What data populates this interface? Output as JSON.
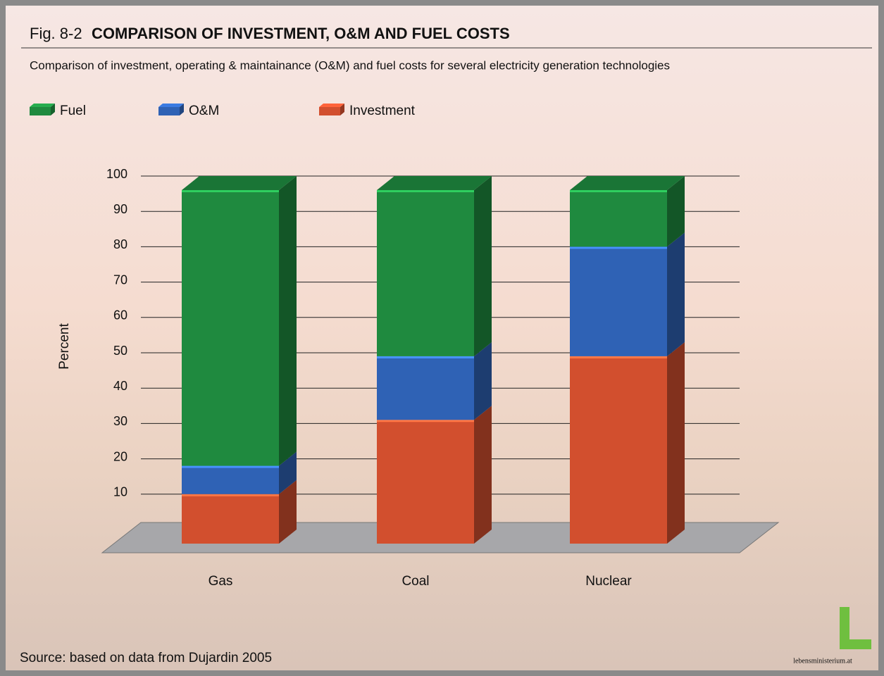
{
  "chart_data": {
    "type": "stacked-bar-3d",
    "fig_label": "Fig. 8-2",
    "title": "COMPARISON OF INVESTMENT, O&M AND FUEL COSTS",
    "subtitle": "Comparison of investment, operating & maintainance (O&M) and fuel costs for several electricity generation technologies",
    "ylabel": "Percent",
    "categories": [
      "Gas",
      "Coal",
      "Nuclear"
    ],
    "series": [
      {
        "name": "Fuel",
        "color": "#1f8a3f",
        "values": [
          78,
          47,
          16
        ]
      },
      {
        "name": "O&M",
        "color": "#2f62b5",
        "values": [
          8,
          18,
          31
        ]
      },
      {
        "name": "Investment",
        "color": "#d24f2e",
        "values": [
          14,
          35,
          53
        ]
      }
    ],
    "ylim": [
      0,
      100
    ],
    "yticks": [
      10,
      20,
      30,
      40,
      50,
      60,
      70,
      80,
      90,
      100
    ],
    "grid": true,
    "source": "Source: based on data from Dujardin 2005",
    "logo": "lebensministerium.at"
  }
}
